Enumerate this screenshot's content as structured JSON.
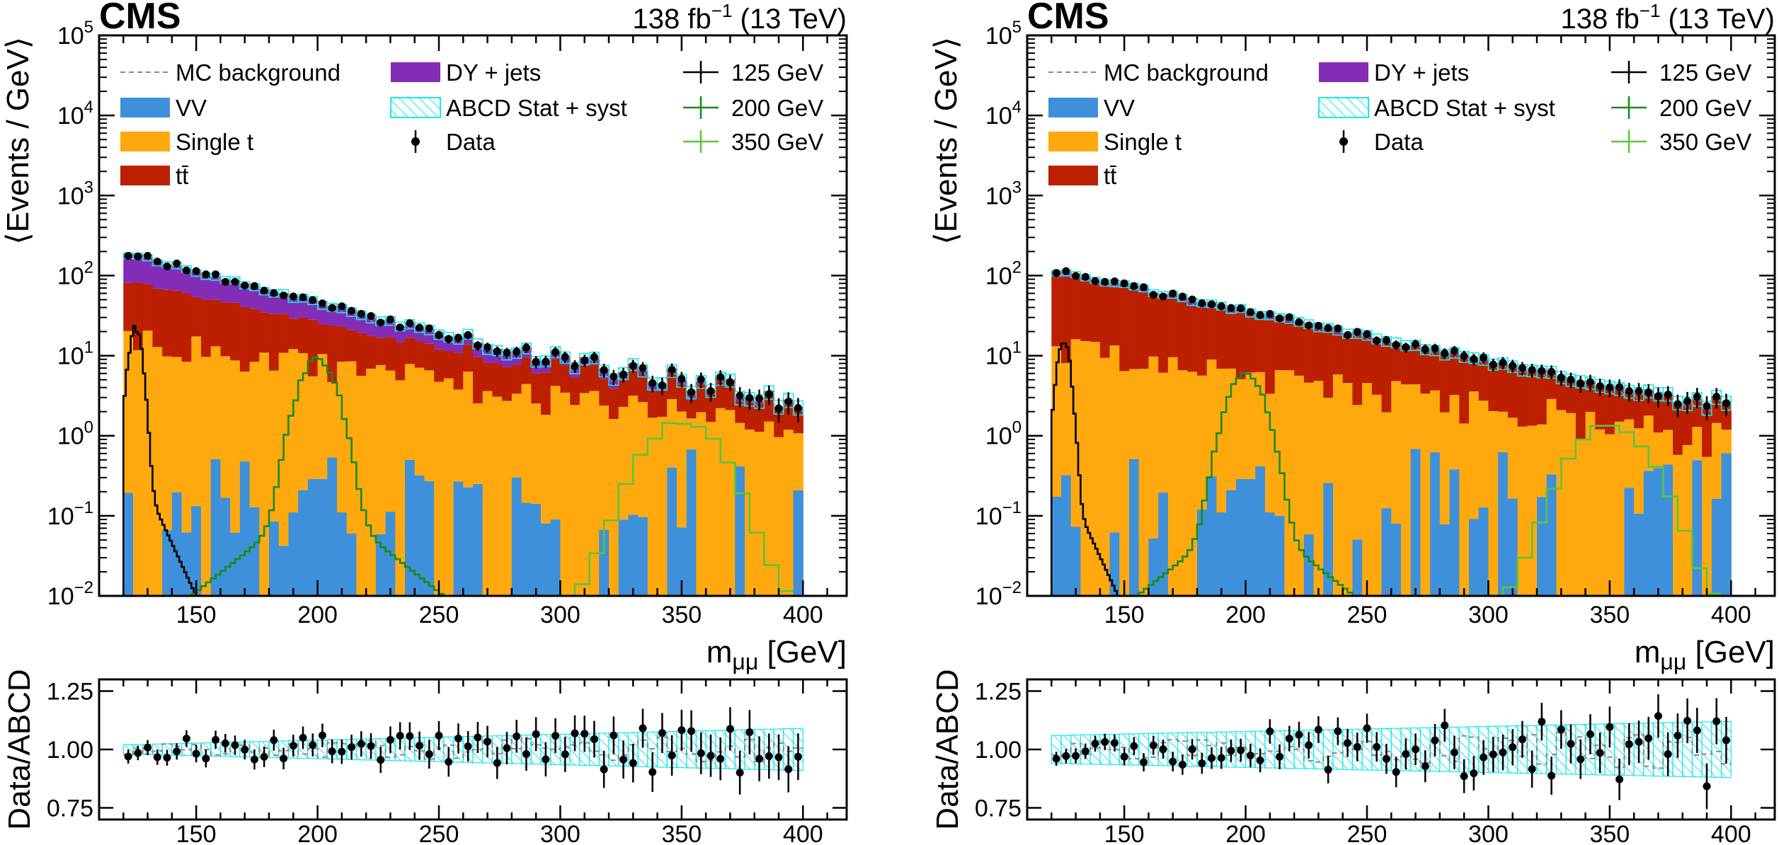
{
  "colors": {
    "vv": "#3f90da",
    "single_t": "#ffa90e",
    "ttbar": "#bd1f01",
    "dy": "#832db6",
    "band": "#19e6f0",
    "mc_bkg": "#888888",
    "data": "#000000",
    "sig125": "#000000",
    "sig200": "#1c8a1c",
    "sig350": "#5cc43c"
  },
  "chart_data": [
    {
      "type": "histogram",
      "panel": "left",
      "title": "CMS",
      "lumi_label": "138 fb",
      "lumi_sup": "−1",
      "energy_label": "(13 TeV)",
      "ylabel": "⟨Events / GeV⟩",
      "xlabel_main": "m",
      "xlabel_sub": "μμ",
      "xlabel_unit": "[GeV]",
      "xlim": [
        110,
        418
      ],
      "ylim": [
        0.01,
        100000
      ],
      "yscale": "log",
      "x_ticks": [
        150,
        200,
        250,
        300,
        350,
        400
      ],
      "y_ticks": [
        "10^−2",
        "10^−1",
        "10^0",
        "10^1",
        "10^2",
        "10^3",
        "10^4",
        "10^5"
      ],
      "legend": {
        "mc_background": "MC background",
        "vv": "VV",
        "single_t": "Single t",
        "ttbar": "tt̄",
        "dy": "DY + jets",
        "abcd": "ABCD Stat + syst",
        "data": "Data",
        "sig125": "125 GeV",
        "sig200": "200 GeV",
        "sig350": "350 GeV"
      },
      "binning": {
        "start": 120,
        "end": 400,
        "width": 4
      },
      "bkg_model": {
        "total_at_120": 210,
        "slope_per_100GeV": 0.79,
        "ttbar_frac_start": 0.42,
        "ttbar_frac_end": 0.8,
        "dy_frac_start": 0.5,
        "dy_frac_end": 0.12,
        "single_t_start": 17,
        "single_t_end": 1.2,
        "vv_level": 0.05
      },
      "signals": [
        {
          "mass": 125,
          "peak": 22,
          "width": 2.2
        },
        {
          "mass": 200,
          "peak": 9,
          "width": 6
        },
        {
          "mass": 350,
          "peak": 1.5,
          "width": 12
        }
      ],
      "ratio": {
        "ylabel": "Data/ABCD",
        "ylim": [
          0.7,
          1.3
        ],
        "y_ticks": [
          0.75,
          1.0,
          1.25
        ],
        "x_ticks": [
          150,
          200,
          250,
          300,
          350,
          400
        ],
        "band_halfwidth_start": 0.02,
        "band_halfwidth_end": 0.09,
        "scatter": 0.05
      }
    },
    {
      "type": "histogram",
      "panel": "right",
      "title": "CMS",
      "lumi_label": "138 fb",
      "lumi_sup": "−1",
      "energy_label": "(13 TeV)",
      "ylabel": "⟨Events / GeV⟩",
      "xlabel_main": "m",
      "xlabel_sub": "μμ",
      "xlabel_unit": "[GeV]",
      "xlim": [
        110,
        418
      ],
      "ylim": [
        0.01,
        100000
      ],
      "yscale": "log",
      "x_ticks": [
        150,
        200,
        250,
        300,
        350,
        400
      ],
      "y_ticks": [
        "10^−2",
        "10^−1",
        "10^0",
        "10^1",
        "10^2",
        "10^3",
        "10^4",
        "10^5"
      ],
      "legend": {
        "mc_background": "MC background",
        "vv": "VV",
        "single_t": "Single t",
        "ttbar": "tt̄",
        "dy": "DY + jets",
        "abcd": "ABCD Stat + syst",
        "data": "Data",
        "sig125": "125 GeV",
        "sig200": "200 GeV",
        "sig350": "350 GeV"
      },
      "binning": {
        "start": 120,
        "end": 400,
        "width": 4
      },
      "bkg_model": {
        "total_at_120": 130,
        "slope_per_100GeV": 0.65,
        "ttbar_frac_start": 0.8,
        "ttbar_frac_end": 0.92,
        "dy_frac_start": 0.1,
        "dy_frac_end": 0.04,
        "single_t_start": 14,
        "single_t_end": 0.9,
        "vv_level": 0.05
      },
      "signals": [
        {
          "mass": 125,
          "peak": 15,
          "width": 2.2
        },
        {
          "mass": 200,
          "peak": 6,
          "width": 6
        },
        {
          "mass": 350,
          "peak": 1.4,
          "width": 12
        }
      ],
      "ratio": {
        "ylabel": "Data/ABCD",
        "ylim": [
          0.7,
          1.3
        ],
        "y_ticks": [
          0.75,
          1.0,
          1.25
        ],
        "x_ticks": [
          150,
          200,
          250,
          300,
          350,
          400
        ],
        "band_halfwidth_start": 0.06,
        "band_halfwidth_end": 0.12,
        "scatter": 0.07
      }
    }
  ]
}
